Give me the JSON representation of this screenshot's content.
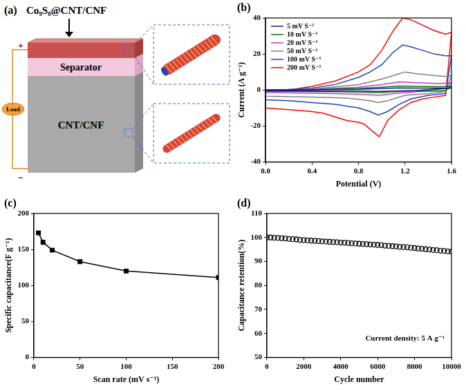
{
  "diagram": {
    "panel": "(a)",
    "electrode_top": "Co₉S₈@CNT/CNF",
    "separator": "Separator",
    "electrode_bottom": "CNT/CNF",
    "load": "Load",
    "positive": "+",
    "negative": "−"
  },
  "chart_data": [
    {
      "panel": "(b)",
      "type": "line",
      "x_label": "Potential (V)",
      "y_label": "Current (A g⁻¹)",
      "xlim": [
        0,
        1.6
      ],
      "xticks": [
        {
          "value": 0,
          "label": "0.0"
        },
        0.4,
        0.8,
        1.2,
        1.6
      ],
      "ylim": [
        -40,
        40
      ],
      "yticks": [
        -40,
        -20,
        0,
        20,
        40
      ],
      "grid": false,
      "legend": "upper left",
      "marker": "none",
      "line_style": "solid",
      "series": [
        {
          "name": "5 mV S⁻¹",
          "color": "#1a1a80",
          "x": [
            0,
            0.4,
            0.8,
            1.0,
            1.15,
            1.3,
            1.6,
            1.3,
            1.0,
            0.8,
            0,
            0
          ],
          "values": [
            0,
            0.1,
            0.4,
            0.8,
            1.1,
            1.0,
            1.0,
            -0.3,
            -0.8,
            -0.6,
            -0.4,
            0
          ]
        },
        {
          "name": "10 mV S⁻¹",
          "color": "#008000",
          "x": [
            0,
            0.4,
            0.8,
            1.0,
            1.15,
            1.3,
            1.5,
            1.6,
            1.55,
            1.3,
            1.1,
            0.98,
            0.85,
            0.6,
            0,
            0
          ],
          "values": [
            0,
            0.2,
            0.8,
            1.5,
            2.2,
            2.0,
            1.8,
            2.0,
            -0.3,
            -0.5,
            -1.0,
            -1.6,
            -1.3,
            -1.0,
            -0.8,
            0
          ]
        },
        {
          "name": "20 mV S⁻¹",
          "color": "#cc33cc",
          "x": [
            0,
            0.4,
            0.8,
            1.0,
            1.15,
            1.3,
            1.5,
            1.6,
            1.55,
            1.3,
            1.1,
            0.98,
            0.85,
            0.6,
            0,
            0
          ],
          "values": [
            0,
            0.3,
            1.5,
            3.0,
            4.5,
            4.0,
            3.5,
            4.0,
            -0.5,
            -1.0,
            -2.0,
            -3.0,
            -2.5,
            -2.0,
            -1.5,
            0
          ]
        },
        {
          "name": "50 mV S⁻¹",
          "color": "#808080",
          "x": [
            0,
            0.4,
            0.8,
            1.0,
            1.15,
            1.2,
            1.3,
            1.45,
            1.55,
            1.6,
            1.55,
            1.4,
            1.2,
            1.05,
            0.97,
            0.9,
            0.7,
            0.4,
            0,
            0
          ],
          "values": [
            0,
            0.5,
            3,
            6,
            9,
            10,
            9,
            8,
            7.5,
            8,
            -1,
            -2,
            -3,
            -6,
            -7,
            -6,
            -4.5,
            -4,
            -3.5,
            0
          ]
        },
        {
          "name": "100 mV S⁻¹",
          "color": "#1f3fbf",
          "x": [
            0,
            0.4,
            0.6,
            0.8,
            0.9,
            1.0,
            1.1,
            1.18,
            1.25,
            1.35,
            1.45,
            1.55,
            1.6,
            1.55,
            1.4,
            1.25,
            1.15,
            1.05,
            0.97,
            0.9,
            0.8,
            0.6,
            0.4,
            0.2,
            0,
            0
          ],
          "values": [
            -0.5,
            1,
            3,
            7,
            10,
            14,
            21,
            25,
            24,
            22,
            20,
            19,
            19,
            -2,
            -3,
            -5,
            -8,
            -12,
            -14,
            -12,
            -10,
            -8,
            -7,
            -6,
            -5.5,
            -0.5
          ]
        },
        {
          "name": "200 mV S⁻¹",
          "color": "#ff0000",
          "x": [
            0,
            0.2,
            0.4,
            0.6,
            0.8,
            0.9,
            1.0,
            1.1,
            1.18,
            1.25,
            1.35,
            1.45,
            1.55,
            1.6,
            1.55,
            1.45,
            1.35,
            1.25,
            1.15,
            1.05,
            0.98,
            0.92,
            0.85,
            0.8,
            0.7,
            0.6,
            0.5,
            0.4,
            0.2,
            0,
            0
          ],
          "values": [
            -1,
            0,
            2,
            5,
            10,
            14,
            22,
            33,
            40,
            39,
            36,
            33,
            31,
            32,
            -3,
            -4,
            -5,
            -7,
            -11,
            -17,
            -26,
            -23,
            -19,
            -18,
            -17,
            -15,
            -13,
            -12,
            -11,
            -10,
            -1
          ]
        }
      ]
    },
    {
      "panel": "(c)",
      "type": "line",
      "x_label": "Scan rate (mV s⁻¹)",
      "y_label": "Specific capacitance(F g⁻¹)",
      "xlim": [
        0,
        200
      ],
      "xticks": [
        0,
        50,
        100,
        150,
        200
      ],
      "ylim": [
        0,
        200
      ],
      "yticks": [
        0,
        50,
        100,
        150,
        200
      ],
      "grid": false,
      "marker": "square",
      "line_style": "solid",
      "color": "#000000",
      "x": [
        5,
        10,
        20,
        50,
        100,
        200
      ],
      "values": [
        173,
        160,
        149,
        133,
        120,
        111
      ]
    },
    {
      "panel": "(d)",
      "type": "scatter",
      "x_label": "Cycle number",
      "y_label": "Capacitance retention(%)",
      "annotation": "Current density: 5 A g⁻¹",
      "xlim": [
        0,
        10000
      ],
      "xticks": [
        0,
        2000,
        4000,
        6000,
        8000,
        10000
      ],
      "ylim": [
        50,
        110
      ],
      "yticks": [
        50,
        60,
        70,
        80,
        90,
        100,
        110
      ],
      "grid": false,
      "marker": "circle",
      "line_style": "none",
      "color": "#000000",
      "x": [
        0,
        200,
        400,
        600,
        800,
        1000,
        1200,
        1400,
        1600,
        1800,
        2000,
        2200,
        2400,
        2600,
        2800,
        3000,
        3200,
        3400,
        3600,
        3800,
        4000,
        4200,
        4400,
        4600,
        4800,
        5000,
        5200,
        5400,
        5600,
        5800,
        6000,
        6200,
        6400,
        6600,
        6800,
        7000,
        7200,
        7400,
        7600,
        7800,
        8000,
        8200,
        8400,
        8600,
        8800,
        9000,
        9200,
        9400,
        9600,
        9800,
        10000
      ],
      "values": [
        100.0,
        100.0,
        99.9,
        99.8,
        99.7,
        99.6,
        99.4,
        99.3,
        99.2,
        99.0,
        98.9,
        98.8,
        98.7,
        98.6,
        98.5,
        98.4,
        98.3,
        98.2,
        98.1,
        98.0,
        97.9,
        97.8,
        97.7,
        97.6,
        97.5,
        97.4,
        97.3,
        97.2,
        97.1,
        97.0,
        96.9,
        96.8,
        96.6,
        96.5,
        96.4,
        96.3,
        96.1,
        96.0,
        95.9,
        95.7,
        95.6,
        95.4,
        95.3,
        95.1,
        95.0,
        94.8,
        94.7,
        94.5,
        94.4,
        94.2,
        94.1
      ]
    }
  ]
}
